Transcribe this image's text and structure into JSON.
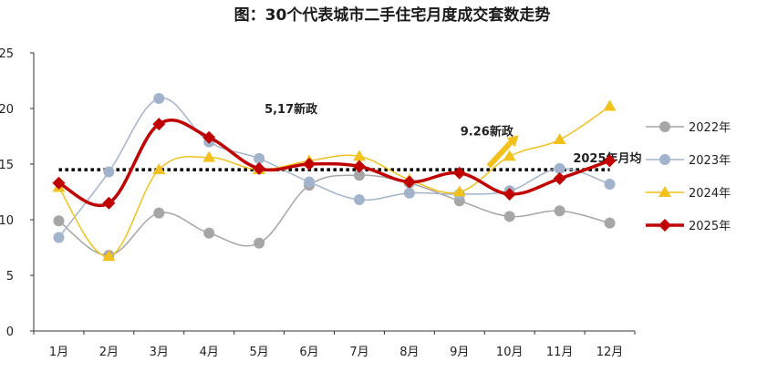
{
  "chart_data": {
    "type": "line",
    "title": "图：30个代表城市二手住宅月度成交套数走势",
    "categories": [
      "1月",
      "2月",
      "3月",
      "4月",
      "5月",
      "6月",
      "7月",
      "8月",
      "9月",
      "10月",
      "11月",
      "12月"
    ],
    "y_ticks": [
      "0",
      "5",
      "10",
      "15",
      "20",
      "25"
    ],
    "ylim": [
      0,
      25
    ],
    "series": [
      {
        "name": "2022年",
        "color": "#a6a6a6",
        "marker": "circle",
        "width": 1.5,
        "values": [
          9.9,
          6.8,
          10.6,
          8.8,
          7.9,
          13.1,
          14.0,
          13.3,
          11.7,
          10.3,
          10.8,
          9.7
        ]
      },
      {
        "name": "2023年",
        "color": "#a2b4cc",
        "marker": "circle",
        "width": 1.5,
        "values": [
          8.4,
          14.3,
          20.9,
          17.0,
          15.5,
          13.4,
          11.8,
          12.4,
          12.3,
          12.6,
          14.6,
          13.2
        ]
      },
      {
        "name": "2024年",
        "color": "#f2c11c",
        "marker": "triangle",
        "width": 1.5,
        "values": [
          12.9,
          6.7,
          14.5,
          15.6,
          14.5,
          15.3,
          15.7,
          13.6,
          12.5,
          15.7,
          17.2,
          20.2
        ]
      },
      {
        "name": "2025年",
        "color": "#c00000",
        "marker": "diamond",
        "width": 3.5,
        "values": [
          13.3,
          11.5,
          18.6,
          17.4,
          14.6,
          15.0,
          14.8,
          13.4,
          14.2,
          12.3,
          13.7,
          15.3
        ]
      }
    ],
    "average_line": {
      "label": "2025年月均",
      "value": 14.5
    },
    "annotations": [
      {
        "text": "5,17新政",
        "x_index": 4,
        "y": 20.0
      },
      {
        "text": "9.26新政",
        "x_index": 8,
        "y": 18.0
      }
    ],
    "legend_position": "right"
  }
}
